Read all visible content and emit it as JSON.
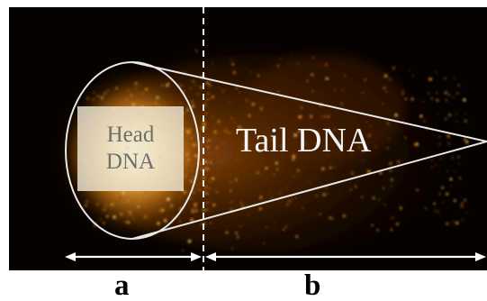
{
  "figure": {
    "head_label": [
      "Head",
      "DNA"
    ],
    "tail_label": "Tail DNA",
    "segment_a": "a",
    "segment_b": "b"
  },
  "colors": {
    "background_image": "#050200",
    "glow_core": "#fff3c0",
    "glow_mid": "#e8931c",
    "outline": "#e8e8e8",
    "arrows": "#ffffff"
  }
}
